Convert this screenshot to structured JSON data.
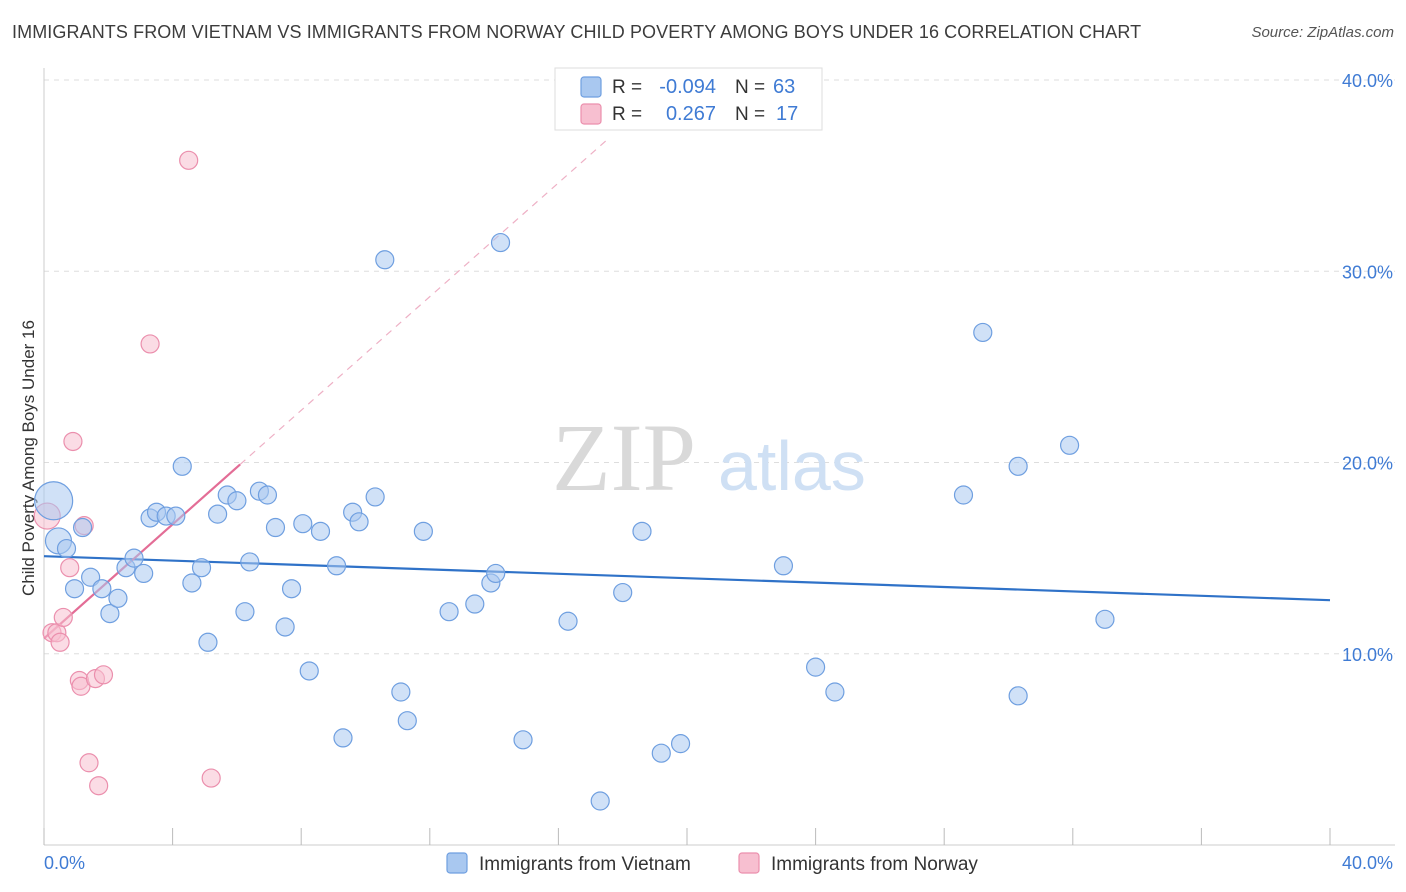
{
  "title": "IMMIGRANTS FROM VIETNAM VS IMMIGRANTS FROM NORWAY CHILD POVERTY AMONG BOYS UNDER 16 CORRELATION CHART",
  "source": "Source: ZipAtlas.com",
  "watermark": {
    "zip": "ZIP",
    "atlas": "atlas"
  },
  "colors": {
    "vietnam_fill": "#a9c8f0",
    "vietnam_stroke": "#6f9fe0",
    "vietnam_line": "#2f72c8",
    "norway_fill": "#f7bfd0",
    "norway_stroke": "#eb8fad",
    "norway_line": "#e36d96",
    "grid": "#dddddd",
    "axis_label": "#3f7bd4"
  },
  "legend": {
    "rows": [
      {
        "r_label": "R =",
        "r_value": "-0.094",
        "n_label": "N =",
        "n_value": "63"
      },
      {
        "r_label": "R =",
        "r_value": "0.267",
        "n_label": "N =",
        "n_value": "17"
      }
    ]
  },
  "chart_data": {
    "type": "scatter",
    "title": "IMMIGRANTS FROM VIETNAM VS IMMIGRANTS FROM NORWAY CHILD POVERTY AMONG BOYS UNDER 16 CORRELATION CHART",
    "xlabel": "",
    "ylabel": "Child Poverty Among Boys Under 16",
    "xlim": [
      0,
      40
    ],
    "ylim": [
      0,
      40
    ],
    "x_tick_labels": [
      "0.0%",
      "40.0%"
    ],
    "y_ticks": [
      10,
      20,
      30,
      40
    ],
    "y_tick_labels": [
      "10.0%",
      "20.0%",
      "30.0%",
      "40.0%"
    ],
    "legend_position": "bottom",
    "series": [
      {
        "name": "Immigrants from Vietnam",
        "r": -0.094,
        "n": 63,
        "trend": {
          "x": [
            0,
            40
          ],
          "y": [
            15.1,
            12.8
          ]
        },
        "points": [
          {
            "x": 0.3,
            "y": 18.0,
            "big": 2
          },
          {
            "x": 0.45,
            "y": 15.9,
            "big": 1
          },
          {
            "x": 0.7,
            "y": 15.5
          },
          {
            "x": 0.95,
            "y": 13.4
          },
          {
            "x": 1.2,
            "y": 16.6
          },
          {
            "x": 1.45,
            "y": 14.0
          },
          {
            "x": 1.8,
            "y": 13.4
          },
          {
            "x": 2.05,
            "y": 12.1
          },
          {
            "x": 2.3,
            "y": 12.9
          },
          {
            "x": 2.55,
            "y": 14.5
          },
          {
            "x": 2.8,
            "y": 15.0
          },
          {
            "x": 3.1,
            "y": 14.2
          },
          {
            "x": 3.3,
            "y": 17.1
          },
          {
            "x": 3.5,
            "y": 17.4
          },
          {
            "x": 3.8,
            "y": 17.2
          },
          {
            "x": 4.1,
            "y": 17.2
          },
          {
            "x": 4.3,
            "y": 19.8
          },
          {
            "x": 4.6,
            "y": 13.7
          },
          {
            "x": 4.9,
            "y": 14.5
          },
          {
            "x": 5.1,
            "y": 10.6
          },
          {
            "x": 5.4,
            "y": 17.3
          },
          {
            "x": 5.7,
            "y": 18.3
          },
          {
            "x": 6.0,
            "y": 18.0
          },
          {
            "x": 6.25,
            "y": 12.2
          },
          {
            "x": 6.4,
            "y": 14.8
          },
          {
            "x": 6.7,
            "y": 18.5
          },
          {
            "x": 6.95,
            "y": 18.3
          },
          {
            "x": 7.2,
            "y": 16.6
          },
          {
            "x": 7.5,
            "y": 11.4
          },
          {
            "x": 7.7,
            "y": 13.4
          },
          {
            "x": 8.05,
            "y": 16.8
          },
          {
            "x": 8.25,
            "y": 9.1
          },
          {
            "x": 8.6,
            "y": 16.4
          },
          {
            "x": 9.1,
            "y": 14.6
          },
          {
            "x": 9.3,
            "y": 5.6
          },
          {
            "x": 9.6,
            "y": 17.4
          },
          {
            "x": 9.8,
            "y": 16.9
          },
          {
            "x": 10.3,
            "y": 18.2
          },
          {
            "x": 10.6,
            "y": 30.6
          },
          {
            "x": 11.1,
            "y": 8.0
          },
          {
            "x": 11.3,
            "y": 6.5
          },
          {
            "x": 11.8,
            "y": 16.4
          },
          {
            "x": 12.6,
            "y": 12.2
          },
          {
            "x": 13.4,
            "y": 12.6
          },
          {
            "x": 13.9,
            "y": 13.7
          },
          {
            "x": 14.05,
            "y": 14.2
          },
          {
            "x": 14.2,
            "y": 31.5
          },
          {
            "x": 14.9,
            "y": 5.5
          },
          {
            "x": 16.3,
            "y": 11.7
          },
          {
            "x": 17.3,
            "y": 2.3
          },
          {
            "x": 18.0,
            "y": 13.2
          },
          {
            "x": 18.6,
            "y": 16.4
          },
          {
            "x": 19.2,
            "y": 4.8
          },
          {
            "x": 19.8,
            "y": 5.3
          },
          {
            "x": 23.0,
            "y": 14.6
          },
          {
            "x": 24.0,
            "y": 9.3
          },
          {
            "x": 24.6,
            "y": 8.0
          },
          {
            "x": 28.6,
            "y": 18.3
          },
          {
            "x": 30.3,
            "y": 19.8
          },
          {
            "x": 30.3,
            "y": 7.8
          },
          {
            "x": 29.2,
            "y": 26.8
          },
          {
            "x": 31.9,
            "y": 20.9
          },
          {
            "x": 33.0,
            "y": 11.8
          }
        ]
      },
      {
        "name": "Immigrants from Norway",
        "r": 0.267,
        "n": 17,
        "trend": {
          "x": [
            0,
            6.1
          ],
          "y": [
            10.8,
            19.9
          ]
        },
        "trend_dashed": {
          "x": [
            6.1,
            17.6
          ],
          "y": [
            19.9,
            37.0
          ]
        },
        "points": [
          {
            "x": 0.1,
            "y": 17.2,
            "big": 1
          },
          {
            "x": 0.25,
            "y": 11.1
          },
          {
            "x": 0.4,
            "y": 11.1
          },
          {
            "x": 0.5,
            "y": 10.6
          },
          {
            "x": 0.6,
            "y": 11.9
          },
          {
            "x": 0.8,
            "y": 14.5
          },
          {
            "x": 0.9,
            "y": 21.1
          },
          {
            "x": 1.1,
            "y": 8.6
          },
          {
            "x": 1.15,
            "y": 8.3
          },
          {
            "x": 1.25,
            "y": 16.7
          },
          {
            "x": 1.4,
            "y": 4.3
          },
          {
            "x": 1.6,
            "y": 8.7
          },
          {
            "x": 1.7,
            "y": 3.1
          },
          {
            "x": 1.85,
            "y": 8.9
          },
          {
            "x": 3.3,
            "y": 26.2
          },
          {
            "x": 4.5,
            "y": 35.8
          },
          {
            "x": 5.2,
            "y": 3.5
          }
        ]
      }
    ]
  },
  "bottom_legend": [
    {
      "label": "Immigrants from Vietnam"
    },
    {
      "label": "Immigrants from Norway"
    }
  ]
}
